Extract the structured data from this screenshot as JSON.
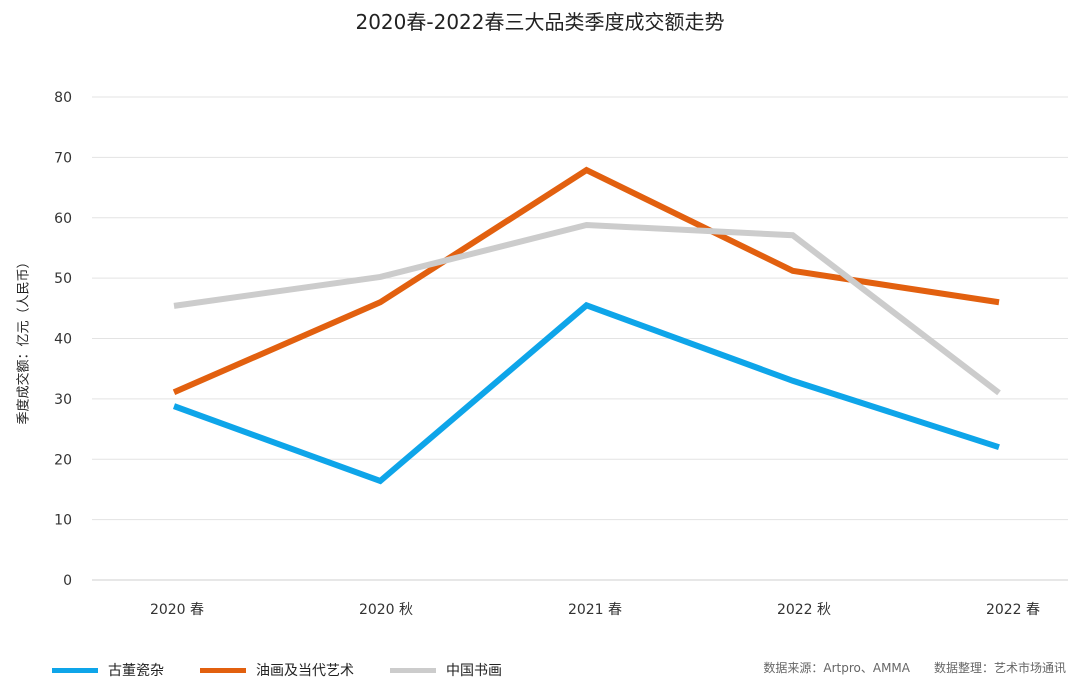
{
  "chart_data": {
    "type": "line",
    "title": "2020春-2022春三大品类季度成交额走势",
    "ylabel": "季度成交额：亿元（人民币）",
    "xlabel": "",
    "categories": [
      "2020 春",
      "2020 秋",
      "2021 春",
      "2022 秋",
      "2022 春"
    ],
    "ylim": [
      0,
      80
    ],
    "yticks": [
      0,
      10,
      20,
      30,
      40,
      50,
      60,
      70,
      80
    ],
    "grid": true,
    "legend_position": "bottom-left",
    "series": [
      {
        "name": "古董瓷杂",
        "color": "#0ea5e9",
        "values": [
          28.8,
          16.4,
          45.5,
          33.0,
          22.0
        ]
      },
      {
        "name": "油画及当代艺术",
        "color": "#e2600f",
        "values": [
          31.1,
          46.0,
          67.9,
          51.2,
          46.0
        ]
      },
      {
        "name": "中国书画",
        "color": "#cccccc",
        "values": [
          45.4,
          50.2,
          58.8,
          57.1,
          31.0
        ]
      }
    ]
  },
  "footer": {
    "source": "数据来源：Artpro、AMMA　　数据整理：艺术市场通讯"
  }
}
